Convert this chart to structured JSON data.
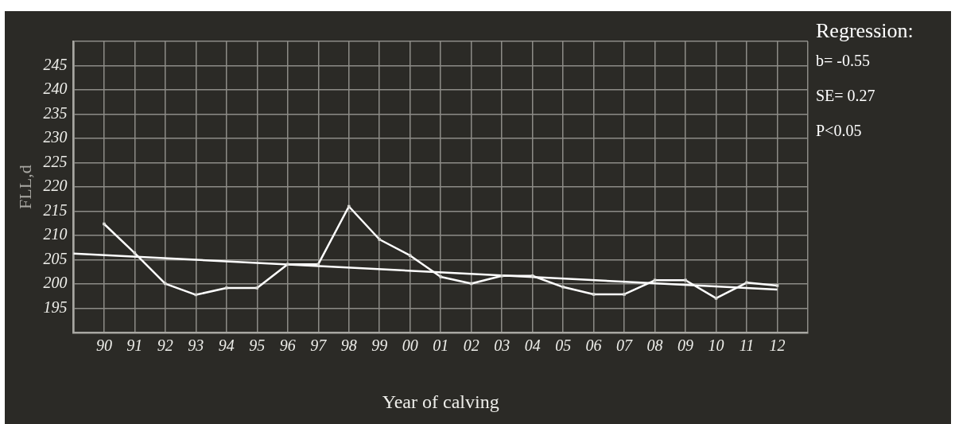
{
  "chart_data": {
    "type": "line",
    "xlabel": "Year of calving",
    "ylabel": "FLL,d",
    "x": [
      1990,
      1991,
      1992,
      1993,
      1994,
      1995,
      1996,
      1997,
      1998,
      1999,
      2000,
      2001,
      2002,
      2003,
      2004,
      2005,
      2006,
      2007,
      2008,
      2009,
      2010,
      2011,
      2012
    ],
    "series": [
      {
        "color": "#ffffff",
        "values": [
          212.4,
          206.4,
          200.1,
          197.8,
          199.2,
          199.2,
          204.1,
          204.1,
          216.0,
          209.2,
          205.9,
          201.5,
          200.1,
          201.7,
          201.7,
          199.4,
          197.9,
          197.9,
          200.8,
          200.8,
          197.1,
          200.3,
          199.7
        ]
      },
      {
        "type": "line",
        "color": "#ffffff",
        "marker": "none",
        "x": [
          1989,
          2012
        ],
        "values": [
          206.3,
          198.9
        ]
      }
    ],
    "xlim": [
      1989,
      2013
    ],
    "xticks": [
      {
        "value": 1989,
        "label": null
      },
      {
        "value": 1990,
        "label": "90"
      },
      {
        "value": 1991,
        "label": "91"
      },
      {
        "value": 1992,
        "label": "92"
      },
      {
        "value": 1993,
        "label": "93"
      },
      {
        "value": 1994,
        "label": "94"
      },
      {
        "value": 1995,
        "label": "95"
      },
      {
        "value": 1996,
        "label": "96"
      },
      {
        "value": 1997,
        "label": "97"
      },
      {
        "value": 1998,
        "label": "98"
      },
      {
        "value": 1999,
        "label": "99"
      },
      {
        "value": 2000,
        "label": "00"
      },
      {
        "value": 2001,
        "label": "01"
      },
      {
        "value": 2002,
        "label": "02"
      },
      {
        "value": 2003,
        "label": "03"
      },
      {
        "value": 2004,
        "label": "04"
      },
      {
        "value": 2005,
        "label": "05"
      },
      {
        "value": 2006,
        "label": "06"
      },
      {
        "value": 2007,
        "label": "07"
      },
      {
        "value": 2008,
        "label": "08"
      },
      {
        "value": 2009,
        "label": "09"
      },
      {
        "value": 2010,
        "label": "10"
      },
      {
        "value": 2011,
        "label": "11"
      },
      {
        "value": 2012,
        "label": "12"
      },
      {
        "value": 2013,
        "label": null
      }
    ],
    "ylim": [
      190,
      250
    ],
    "yticks": [
      {
        "value": 190,
        "label": null
      },
      195,
      200,
      205,
      210,
      215,
      220,
      225,
      230,
      235,
      240,
      245,
      {
        "value": 250,
        "label": null
      }
    ],
    "grid": true,
    "legend": false,
    "marker": "square",
    "line_style": "solid",
    "annotations": [
      "Regression:",
      "b= -0.55",
      "SE= 0.27",
      "P<0.05"
    ]
  }
}
